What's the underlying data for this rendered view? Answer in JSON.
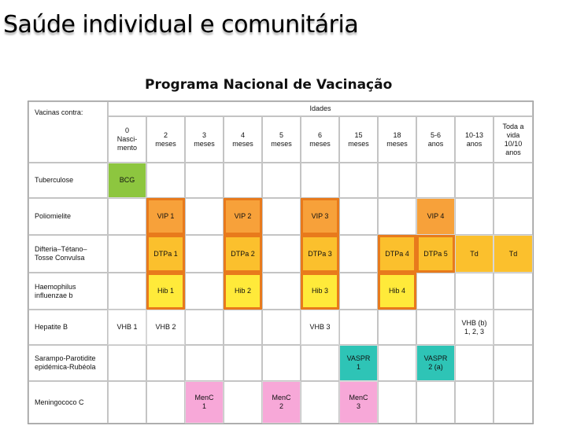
{
  "slide": {
    "title": "Saúde individual e comunitária",
    "subtitle": "Programa Nacional de Vacinação"
  },
  "table": {
    "corner_label": "Vacinas contra:",
    "idades_label": "Idades",
    "ages": [
      "0\nNasci-\nmento",
      "2\nmeses",
      "3\nmeses",
      "4\nmeses",
      "5\nmeses",
      "6\nmeses",
      "15\nmeses",
      "18\nmeses",
      "5-6\nanos",
      "10-13\nanos",
      "Toda a\nvida\n10/10\nanos"
    ],
    "rows": [
      {
        "label": "Tuberculose",
        "cells": [
          {
            "col": 0,
            "text": "BCG",
            "color": "#8dc63f"
          }
        ]
      },
      {
        "label": "Poliomielite",
        "cells": [
          {
            "col": 1,
            "text": "VIP 1",
            "color": "#f7a13a",
            "outlined": true
          },
          {
            "col": 3,
            "text": "VIP 2",
            "color": "#f7a13a",
            "outlined": true
          },
          {
            "col": 5,
            "text": "VIP 3",
            "color": "#f7a13a",
            "outlined": true
          },
          {
            "col": 8,
            "text": "VIP 4",
            "color": "#f7a13a"
          }
        ]
      },
      {
        "label": "Difteria–Tétano–\nTosse Convulsa",
        "cells": [
          {
            "col": 1,
            "text": "DTPa 1",
            "color": "#fbc02d",
            "outlined": true
          },
          {
            "col": 3,
            "text": "DTPa 2",
            "color": "#fbc02d",
            "outlined": true
          },
          {
            "col": 5,
            "text": "DTPa 3",
            "color": "#fbc02d",
            "outlined": true
          },
          {
            "col": 7,
            "text": "DTPa 4",
            "color": "#fbc02d",
            "outlined": true
          },
          {
            "col": 8,
            "text": "DTPa 5",
            "color": "#fbc02d",
            "outlined": true
          },
          {
            "col": 9,
            "text": "Td",
            "color": "#fbc02d"
          },
          {
            "col": 10,
            "text": "Td",
            "color": "#fbc02d"
          }
        ]
      },
      {
        "label": "Haemophilus\ninfluenzae b",
        "cells": [
          {
            "col": 1,
            "text": "Hib 1",
            "color": "#ffea3a",
            "outlined": true
          },
          {
            "col": 3,
            "text": "Hib 2",
            "color": "#ffea3a",
            "outlined": true
          },
          {
            "col": 5,
            "text": "Hib 3",
            "color": "#ffea3a",
            "outlined": true
          },
          {
            "col": 7,
            "text": "Hib 4",
            "color": "#ffea3a",
            "outlined": true
          }
        ]
      },
      {
        "label": "Hepatite B",
        "cells": [
          {
            "col": 0,
            "text": "VHB 1",
            "color": "#ffffff"
          },
          {
            "col": 1,
            "text": "VHB 2",
            "color": "#ffffff"
          },
          {
            "col": 5,
            "text": "VHB 3",
            "color": "#ffffff"
          },
          {
            "col": 9,
            "text": "VHB (b)\n1, 2, 3",
            "color": "#ffffff"
          }
        ]
      },
      {
        "label": "Sarampo-Parotidite\nepidémica-Rubéola",
        "cells": [
          {
            "col": 6,
            "text": "VASPR\n1",
            "color": "#2ec4b6"
          },
          {
            "col": 8,
            "text": "VASPR\n2 (a)",
            "color": "#2ec4b6"
          }
        ]
      },
      {
        "label": "Meningococo C",
        "cells": [
          {
            "col": 2,
            "text": "MenC\n1",
            "color": "#f7a8d8"
          },
          {
            "col": 4,
            "text": "MenC\n2",
            "color": "#f7a8d8"
          },
          {
            "col": 6,
            "text": "MenC\n3",
            "color": "#f7a8d8"
          }
        ]
      }
    ]
  }
}
